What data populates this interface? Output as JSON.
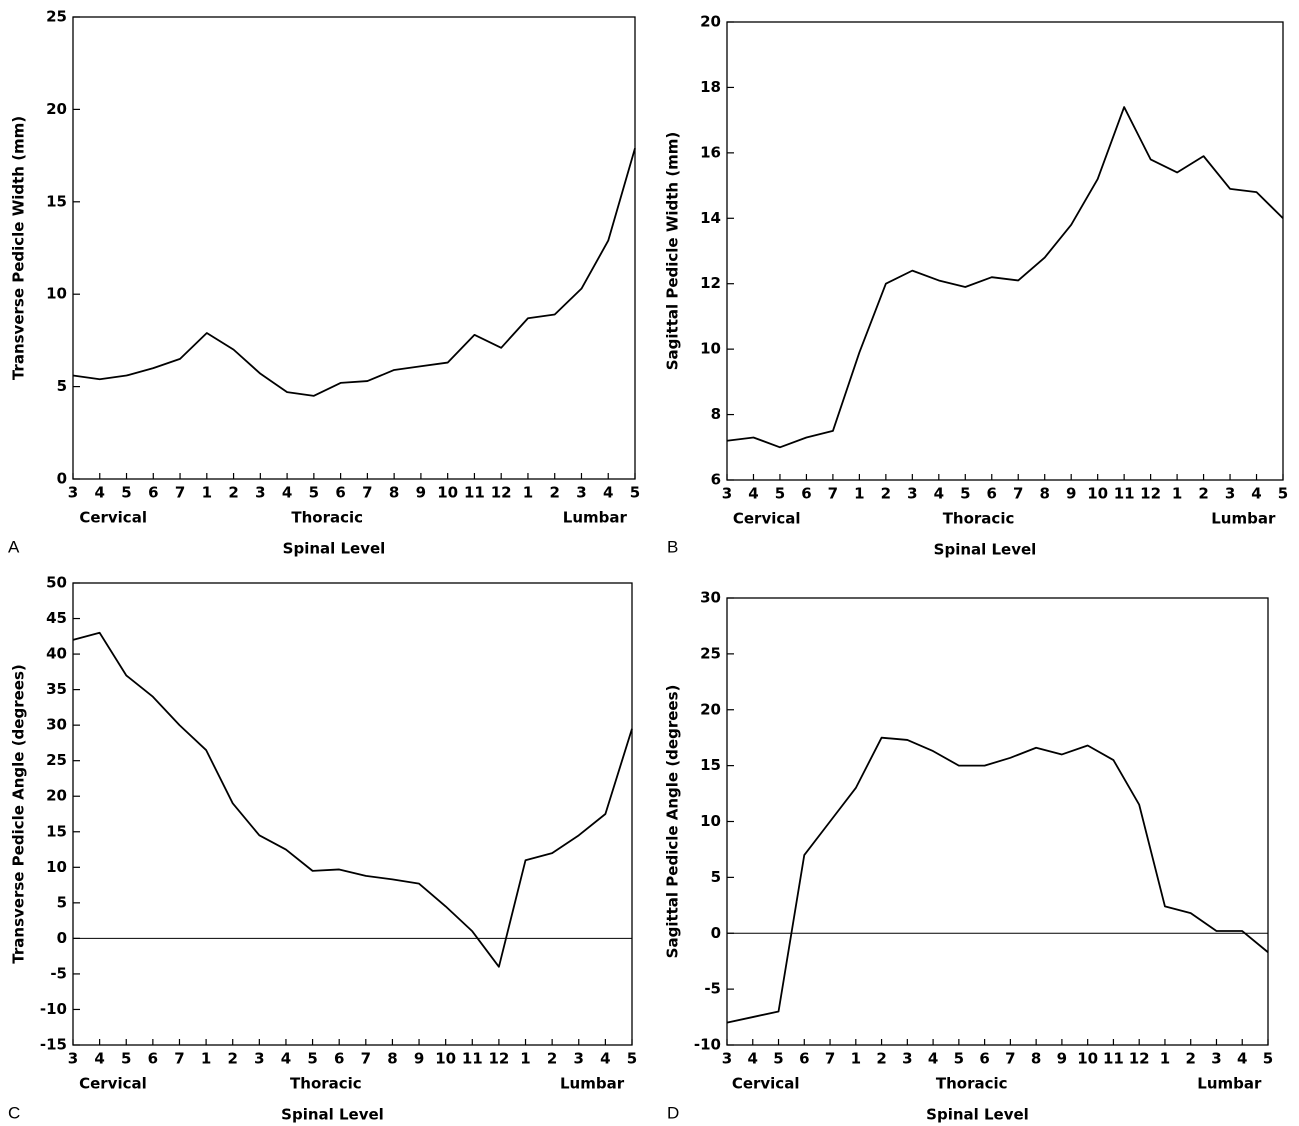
{
  "chart_data": [
    {
      "type": "line",
      "panel_label": "A",
      "ylabel": "Transverse Pedicle Width (mm)",
      "xlabel": "Spinal Level",
      "groups": [
        "Cervical",
        "Thoracic",
        "Lumbar"
      ],
      "categories": [
        "3",
        "4",
        "5",
        "6",
        "7",
        "1",
        "2",
        "3",
        "4",
        "5",
        "6",
        "7",
        "8",
        "9",
        "10",
        "11",
        "12",
        "1",
        "2",
        "3",
        "4",
        "5"
      ],
      "values": [
        5.6,
        5.4,
        5.6,
        6.0,
        6.5,
        7.9,
        7.0,
        5.7,
        4.7,
        4.5,
        5.2,
        5.3,
        5.9,
        6.1,
        6.3,
        7.8,
        7.1,
        8.7,
        8.9,
        10.3,
        12.9,
        17.9
      ],
      "color": "#000000",
      "ylim": [
        0,
        25
      ],
      "yticks": [
        0,
        5,
        10,
        15,
        20,
        25
      ],
      "zero_line": false
    },
    {
      "type": "line",
      "panel_label": "B",
      "ylabel": "Sagittal Pedicle Width (mm)",
      "xlabel": "Spinal Level",
      "groups": [
        "Cervical",
        "Thoracic",
        "Lumbar"
      ],
      "categories": [
        "3",
        "4",
        "5",
        "6",
        "7",
        "1",
        "2",
        "3",
        "4",
        "5",
        "6",
        "7",
        "8",
        "9",
        "10",
        "11",
        "12",
        "1",
        "2",
        "3",
        "4",
        "5"
      ],
      "values": [
        7.2,
        7.3,
        7.0,
        7.3,
        7.5,
        9.9,
        12.0,
        12.4,
        12.1,
        11.9,
        12.2,
        12.1,
        12.8,
        13.8,
        15.2,
        17.4,
        15.8,
        15.4,
        15.9,
        14.9,
        14.8,
        14.0
      ],
      "color": "#000000",
      "ylim": [
        6,
        20
      ],
      "yticks": [
        6,
        8,
        10,
        12,
        14,
        16,
        18,
        20
      ],
      "zero_line": false
    },
    {
      "type": "line",
      "panel_label": "C",
      "ylabel": "Transverse Pedicle Angle (degrees)",
      "xlabel": "Spinal Level",
      "groups": [
        "Cervical",
        "Thoracic",
        "Lumbar"
      ],
      "categories": [
        "3",
        "4",
        "5",
        "6",
        "7",
        "1",
        "2",
        "3",
        "4",
        "5",
        "6",
        "7",
        "8",
        "9",
        "10",
        "11",
        "12",
        "1",
        "2",
        "3",
        "4",
        "5"
      ],
      "values": [
        42,
        43,
        37,
        34,
        30,
        26.5,
        19,
        14.5,
        12.5,
        9.5,
        9.7,
        8.8,
        8.3,
        7.7,
        4.5,
        1,
        -4,
        11,
        12,
        14.5,
        17.5,
        29.5
      ],
      "color": "#000000",
      "ylim": [
        -15,
        50
      ],
      "yticks": [
        -15,
        -10,
        -5,
        0,
        5,
        10,
        15,
        20,
        25,
        30,
        35,
        40,
        45,
        50
      ],
      "zero_line": true
    },
    {
      "type": "line",
      "panel_label": "D",
      "ylabel": "Sagittal Pedicle Angle (degrees)",
      "xlabel": "Spinal Level",
      "groups": [
        "Cervical",
        "Thoracic",
        "Lumbar"
      ],
      "categories": [
        "3",
        "4",
        "5",
        "6",
        "7",
        "1",
        "2",
        "3",
        "4",
        "5",
        "6",
        "7",
        "8",
        "9",
        "10",
        "11",
        "12",
        "1",
        "2",
        "3",
        "4",
        "5"
      ],
      "values": [
        -8,
        -7.5,
        -7,
        7,
        10,
        13,
        17.5,
        17.3,
        16.3,
        15,
        15,
        15.7,
        16.6,
        16,
        16.8,
        15.5,
        11.5,
        2.4,
        1.8,
        0.2,
        0.2,
        -1.7
      ],
      "color": "#000000",
      "ylim": [
        -10,
        30
      ],
      "yticks": [
        -10,
        -5,
        0,
        5,
        10,
        15,
        20,
        25,
        30
      ],
      "zero_line": true
    }
  ]
}
